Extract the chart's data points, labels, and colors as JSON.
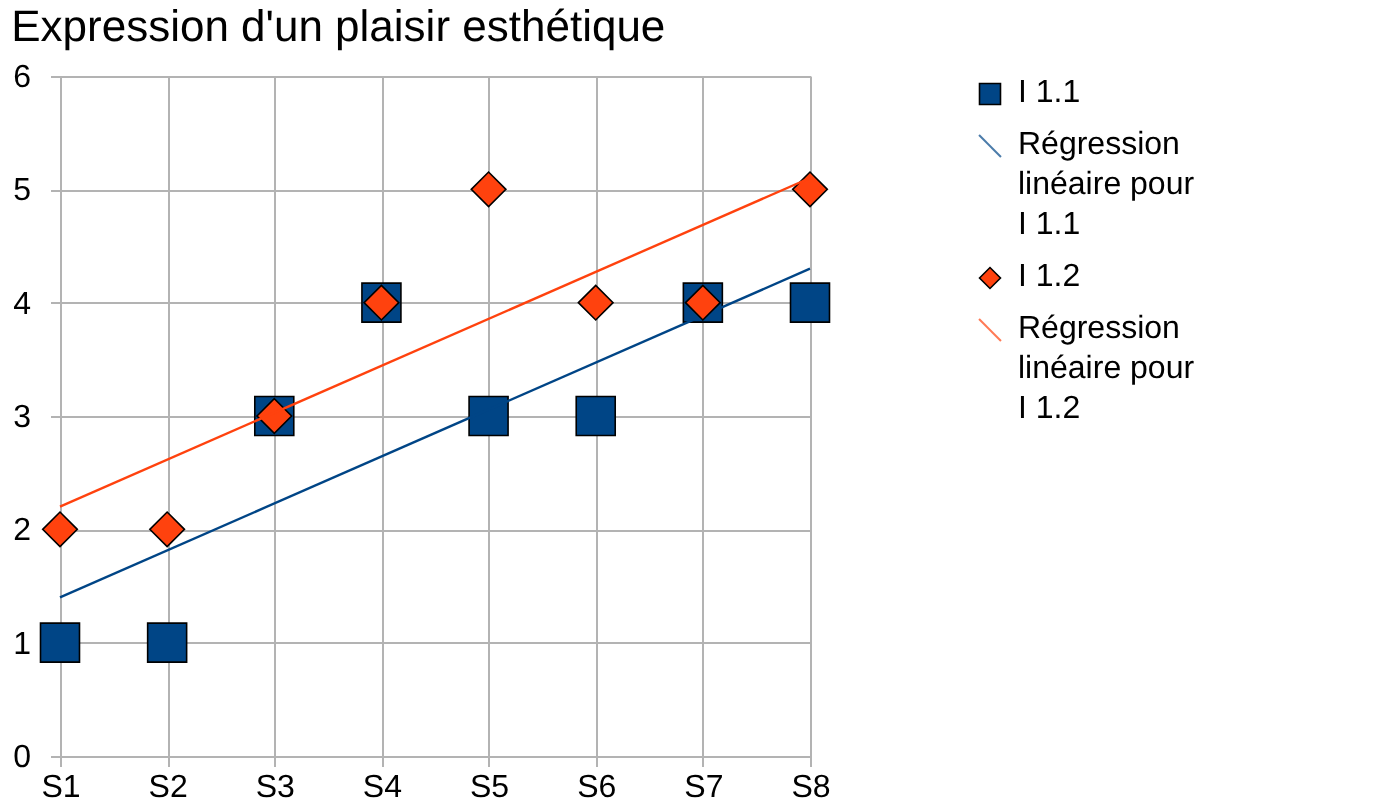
{
  "chart_data": {
    "type": "scatter",
    "title": "Expression d'un plaisir esthétique",
    "categories": [
      "S1",
      "S2",
      "S3",
      "S4",
      "S5",
      "S6",
      "S7",
      "S8"
    ],
    "series": [
      {
        "name": "I 1.1",
        "color": "#004586",
        "marker": "square",
        "values": [
          1,
          1,
          3,
          4,
          3,
          3,
          4,
          4
        ]
      },
      {
        "name": "Régression linéaire pour I 1.1",
        "type": "line",
        "color": "#004586",
        "x": [
          "S1",
          "S8"
        ],
        "values": [
          1.4,
          4.3
        ]
      },
      {
        "name": "I 1.2",
        "color": "#ff420e",
        "marker": "diamond",
        "values": [
          2,
          2,
          3,
          4,
          5,
          4,
          4,
          5
        ]
      },
      {
        "name": "Régression linéaire pour I 1.2",
        "type": "line",
        "color": "#ff420e",
        "x": [
          "S1",
          "S8"
        ],
        "values": [
          2.2,
          5.1
        ]
      }
    ],
    "ylim": [
      0,
      6
    ],
    "yticks": [
      0,
      1,
      2,
      3,
      4,
      5,
      6
    ],
    "grid": true,
    "legend": "top right"
  }
}
